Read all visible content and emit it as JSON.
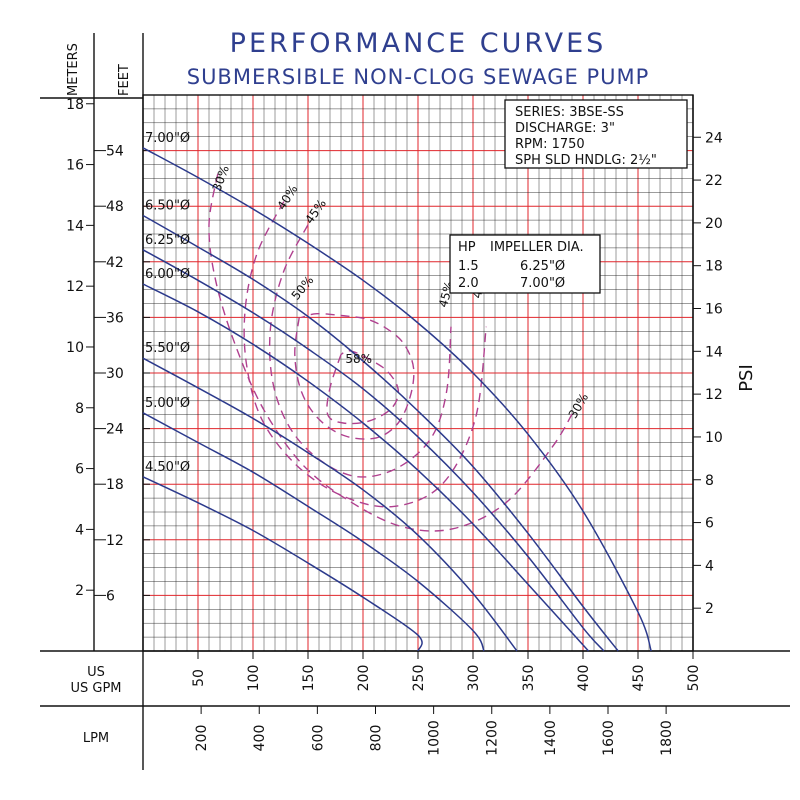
{
  "chart_data": {
    "type": "line",
    "title": "PERFORMANCE CURVES",
    "subtitle": "SUBMERSIBLE NON-CLOG SEWAGE PUMP",
    "axes": {
      "x_primary": {
        "label": "US GPM",
        "range": [
          0,
          500
        ],
        "ticks": [
          50,
          100,
          150,
          200,
          250,
          300,
          350,
          400,
          450,
          500
        ]
      },
      "x_secondary": {
        "label": "LPM",
        "ticks": [
          200,
          400,
          600,
          800,
          1000,
          1200,
          1400,
          1600,
          1800
        ]
      },
      "y_feet": {
        "label": "FEET",
        "range": [
          0,
          60
        ],
        "ticks": [
          6,
          12,
          18,
          24,
          30,
          36,
          42,
          48,
          54
        ]
      },
      "y_meters": {
        "label": "METERS",
        "ticks": [
          2,
          4,
          6,
          8,
          10,
          12,
          14,
          16,
          18
        ]
      },
      "y_psi": {
        "label": "PSI",
        "ticks": [
          2,
          4,
          6,
          8,
          10,
          12,
          14,
          16,
          18,
          20,
          22,
          24
        ]
      }
    },
    "grid": true,
    "spec_box": [
      "SERIES: 3BSE-SS",
      "DISCHARGE: 3\"",
      "RPM: 1750",
      "SPH SLD HNDLG: 2½\""
    ],
    "hp_table": {
      "header": [
        "HP",
        "IMPELLER DIA."
      ],
      "rows": [
        [
          "1.5",
          "6.25\"Ø"
        ],
        [
          "2.0",
          "7.00\"Ø"
        ]
      ]
    },
    "series": [
      {
        "name": "7.00\"Ø",
        "x": [
          0,
          50,
          100,
          150,
          200,
          250,
          300,
          350,
          400,
          450,
          462
        ],
        "y": [
          54.3,
          51.1,
          47.7,
          44.0,
          40.0,
          35.4,
          30.0,
          23.4,
          15.1,
          4.2,
          0
        ]
      },
      {
        "name": "6.50\"Ø",
        "x": [
          0,
          50,
          100,
          150,
          200,
          250,
          300,
          350,
          400,
          432
        ],
        "y": [
          47.0,
          43.6,
          40.1,
          36.1,
          31.3,
          25.9,
          19.9,
          12.7,
          4.8,
          0
        ]
      },
      {
        "name": "6.25\"Ø",
        "x": [
          0,
          50,
          100,
          150,
          200,
          250,
          300,
          350,
          400,
          419
        ],
        "y": [
          43.3,
          40.0,
          36.5,
          32.6,
          28.3,
          23.1,
          17.1,
          10.2,
          2.5,
          0
        ]
      },
      {
        "name": "6.00\"Ø",
        "x": [
          0,
          50,
          100,
          150,
          200,
          250,
          300,
          350,
          405
        ],
        "y": [
          39.6,
          36.6,
          33.1,
          29.1,
          24.6,
          19.5,
          13.7,
          7.2,
          0
        ]
      },
      {
        "name": "5.50\"Ø",
        "x": [
          0,
          50,
          100,
          150,
          200,
          250,
          300,
          340
        ],
        "y": [
          31.6,
          28.4,
          25.1,
          21.4,
          17.4,
          12.5,
          6.2,
          0
        ]
      },
      {
        "name": "5.00\"Ø",
        "x": [
          0,
          50,
          100,
          150,
          200,
          250,
          300,
          310
        ],
        "y": [
          25.7,
          22.5,
          19.3,
          15.6,
          11.8,
          7.5,
          2.2,
          0
        ]
      },
      {
        "name": "4.50\"Ø",
        "x": [
          0,
          50,
          100,
          150,
          200,
          250,
          250
        ],
        "y": [
          18.8,
          16.0,
          13.0,
          9.5,
          5.8,
          1.7,
          0
        ]
      }
    ],
    "efficiency_curves": [
      {
        "label": "30%",
        "x": [
          68,
          60,
          66,
          84,
          110,
          146,
          190,
          236,
          282,
          330,
          372,
          392
        ],
        "y": [
          51.5,
          46,
          40,
          33,
          26,
          20,
          16,
          13.4,
          13.2,
          16,
          22,
          26
        ]
      },
      {
        "label": "40%",
        "x": [
          128,
          104,
          93,
          94,
          108,
          140,
          182,
          228,
          272,
          302,
          312
        ],
        "y": [
          48.5,
          43,
          37,
          31,
          25,
          20,
          16.7,
          15.6,
          18,
          25,
          35
        ]
      },
      {
        "label": "45%",
        "x": [
          150,
          128,
          116,
          118,
          134,
          162,
          196,
          232,
          262,
          276,
          280
        ],
        "y": [
          46,
          41,
          35,
          29,
          24,
          20.5,
          18.8,
          19.8,
          23,
          28,
          35
        ]
      },
      {
        "label": "50%",
        "x": [
          142,
          138,
          144,
          160,
          184,
          212,
          232,
          243,
          246,
          238,
          224,
          204,
          180,
          158,
          144
        ],
        "y": [
          36,
          32,
          28,
          25,
          23.2,
          23,
          24.6,
          27.5,
          30.5,
          33,
          34.6,
          35.8,
          36.2,
          36.4,
          36
        ]
      },
      {
        "label": "58%",
        "x": [
          180,
          170,
          168,
          182,
          205,
          226,
          232,
          222,
          204,
          188,
          180
        ],
        "y": [
          32,
          28.4,
          25.5,
          24.6,
          24.8,
          26.2,
          28.2,
          30.2,
          31.6,
          32.4,
          32
        ]
      }
    ]
  }
}
